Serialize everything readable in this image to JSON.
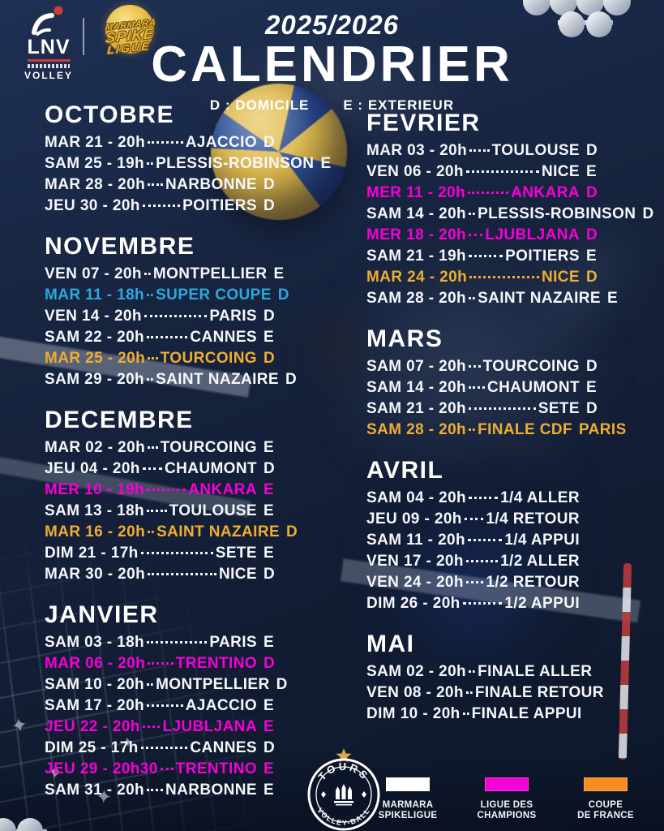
{
  "header": {
    "season": "2025/2026",
    "title": "CALENDRIER",
    "legend_domicile": "D : DOMICILE",
    "legend_exterieur": "E : EXTERIEUR"
  },
  "logos": {
    "lnv": "LNV",
    "lnv_sub": "VOLLEY",
    "marmara": [
      "MARMARA",
      "SPIKE",
      "LIGUE"
    ],
    "tours_top": "TOURS",
    "tours_bottom": "VOLLEY-BALL"
  },
  "colors": {
    "background": "#16223C",
    "row_white": "#F5F7FB",
    "row_cyan": "#2AA9E0",
    "row_gold": "#EFAD31",
    "row_magenta": "#F500D6",
    "legend_white": "#FFFFFF",
    "legend_magenta": "#F201D8",
    "legend_orange": "#F78D1E",
    "accent_red": "#D03A3A",
    "gold_logo": "#E7B33C"
  },
  "months": [
    {
      "name": "OCTOBRE",
      "column": "left",
      "rows": [
        {
          "day": "MAR 21 - 20h",
          "opponent": "AJACCIO",
          "loc": "D",
          "color": "white"
        },
        {
          "day": "SAM 25 - 19h",
          "opponent": "PLESSIS-ROBINSON",
          "loc": "E",
          "color": "white"
        },
        {
          "day": "MAR 28 - 20h",
          "opponent": "NARBONNE",
          "loc": "D",
          "color": "white"
        },
        {
          "day": "JEU 30 - 20h",
          "opponent": "POITIERS",
          "loc": "D",
          "color": "white"
        }
      ]
    },
    {
      "name": "NOVEMBRE",
      "column": "left",
      "rows": [
        {
          "day": "VEN 07 - 20h",
          "opponent": "MONTPELLIER",
          "loc": "E",
          "color": "white"
        },
        {
          "day": "MAR 11 - 18h",
          "opponent": "SUPER COUPE",
          "loc": "D",
          "color": "cyan"
        },
        {
          "day": "VEN 14 - 20h",
          "opponent": "PARIS",
          "loc": "D",
          "color": "white"
        },
        {
          "day": "SAM 22 - 20h",
          "opponent": "CANNES",
          "loc": "E",
          "color": "white"
        },
        {
          "day": "MAR 25 - 20h",
          "opponent": "TOURCOING",
          "loc": "D",
          "color": "gold"
        },
        {
          "day": "SAM 29 - 20h",
          "opponent": "SAINT NAZAIRE",
          "loc": "D",
          "color": "white"
        }
      ]
    },
    {
      "name": "DECEMBRE",
      "column": "left",
      "rows": [
        {
          "day": "MAR 02 - 20h",
          "opponent": "TOURCOING",
          "loc": "E",
          "color": "white"
        },
        {
          "day": "JEU 04 - 20h",
          "opponent": "CHAUMONT",
          "loc": "D",
          "color": "white"
        },
        {
          "day": "MER 10 - 19h",
          "opponent": "ANKARA",
          "loc": "E",
          "color": "magenta"
        },
        {
          "day": "SAM 13 - 18h",
          "opponent": "TOULOUSE",
          "loc": "E",
          "color": "white"
        },
        {
          "day": "MAR 16 - 20h",
          "opponent": "SAINT NAZAIRE",
          "loc": "D",
          "color": "gold"
        },
        {
          "day": "DIM 21 - 17h",
          "opponent": "SETE",
          "loc": "E",
          "color": "white"
        },
        {
          "day": "MAR 30 - 20h",
          "opponent": "NICE",
          "loc": "D",
          "color": "white"
        }
      ]
    },
    {
      "name": "JANVIER",
      "column": "left",
      "rows": [
        {
          "day": "SAM 03 - 18h",
          "opponent": "PARIS",
          "loc": "E",
          "color": "white"
        },
        {
          "day": "MAR 06 - 20h",
          "opponent": "TRENTINO",
          "loc": "D",
          "color": "magenta"
        },
        {
          "day": "SAM 10 - 20h",
          "opponent": "MONTPELLIER",
          "loc": "D",
          "color": "white"
        },
        {
          "day": "SAM 17 - 20h",
          "opponent": "AJACCIO",
          "loc": "E",
          "color": "white"
        },
        {
          "day": "JEU 22 - 20h",
          "opponent": "LJUBLJANA",
          "loc": "E",
          "color": "magenta"
        },
        {
          "day": "DIM 25 - 17h",
          "opponent": "CANNES",
          "loloc": "",
          "loc": "D",
          "color": "white"
        },
        {
          "day": "JEU 29 - 20h30",
          "opponent": "TRENTINO",
          "loc": "E",
          "color": "magenta"
        },
        {
          "day": "SAM 31 - 20h",
          "opponent": "NARBONNE",
          "loc": "E",
          "color": "white"
        }
      ]
    },
    {
      "name": "FEVRIER",
      "column": "right",
      "rows": [
        {
          "day": "MAR 03 - 20h",
          "opponent": "TOULOUSE",
          "loc": "D",
          "color": "white"
        },
        {
          "day": "VEN 06 - 20h",
          "opponent": "NICE",
          "loc": "E",
          "color": "white"
        },
        {
          "day": "MER 11 - 20h",
          "opponent": "ANKARA",
          "loc": "D",
          "color": "magenta"
        },
        {
          "day": "SAM 14 - 20h",
          "opponent": "PLESSIS-ROBINSON",
          "loc": "D",
          "color": "white"
        },
        {
          "day": "MER 18 - 20h",
          "opponent": "LJUBLJANA",
          "loc": "D",
          "color": "magenta"
        },
        {
          "day": "SAM 21 - 19h",
          "opponent": "POITIERS",
          "loc": "E",
          "color": "white"
        },
        {
          "day": "MAR 24 - 20h",
          "opponent": "NICE",
          "loc": "D",
          "color": "gold"
        },
        {
          "day": "SAM 28 - 20h",
          "opponent": "SAINT NAZAIRE",
          "loc": "E",
          "color": "white"
        }
      ]
    },
    {
      "name": "MARS",
      "column": "right",
      "rows": [
        {
          "day": "SAM 07 - 20h",
          "opponent": "TOURCOING",
          "loc": "D",
          "color": "white"
        },
        {
          "day": "SAM 14 - 20h",
          "opponent": "CHAUMONT",
          "loc": "E",
          "color": "white"
        },
        {
          "day": "SAM 21 - 20h",
          "opponent": "SETE",
          "loc": "D",
          "color": "white"
        },
        {
          "day": "SAM 28 - 20h",
          "opponent": "FINALE CDF",
          "loc": "PARIS",
          "color": "gold"
        }
      ]
    },
    {
      "name": "AVRIL",
      "column": "right",
      "rows": [
        {
          "day": "SAM 04 - 20h",
          "opponent": "1/4 ALLER",
          "loc": "",
          "color": "white"
        },
        {
          "day": "JEU 09 - 20h",
          "opponent": "1/4 RETOUR",
          "loc": "",
          "color": "white"
        },
        {
          "day": "SAM 11 - 20h",
          "opponent": "1/4 APPUI",
          "loc": "",
          "color": "white"
        },
        {
          "day": "VEN 17 - 20h",
          "opponent": "1/2 ALLER",
          "loc": "",
          "color": "white"
        },
        {
          "day": "VEN 24 - 20h",
          "opponent": "1/2 RETOUR",
          "loc": "",
          "color": "white"
        },
        {
          "day": "DIM 26 - 20h",
          "opponent": "1/2 APPUI",
          "loc": "",
          "color": "white"
        }
      ]
    },
    {
      "name": "MAI",
      "column": "right",
      "rows": [
        {
          "day": "SAM 02 - 20h",
          "opponent": "FINALE ALLER",
          "loc": "",
          "color": "white"
        },
        {
          "day": "VEN 08 - 20h",
          "opponent": "FINALE RETOUR",
          "loc": "",
          "color": "white"
        },
        {
          "day": "DIM 10 - 20h",
          "opponent": "FINALE APPUI",
          "loc": "",
          "color": "white"
        }
      ]
    }
  ],
  "competitions": [
    {
      "name": "MARMARA SPIKELIGUE",
      "lines": [
        "MARMARA",
        "SPIKELIGUE"
      ],
      "color": "#FFFFFF"
    },
    {
      "name": "LIGUE DES CHAMPIONS",
      "lines": [
        "LIGUE DES",
        "CHAMPIONS"
      ],
      "color": "#F201D8"
    },
    {
      "name": "COUPE DE FRANCE",
      "lines": [
        "COUPE",
        "DE FRANCE"
      ],
      "color": "#F78D1E"
    }
  ]
}
